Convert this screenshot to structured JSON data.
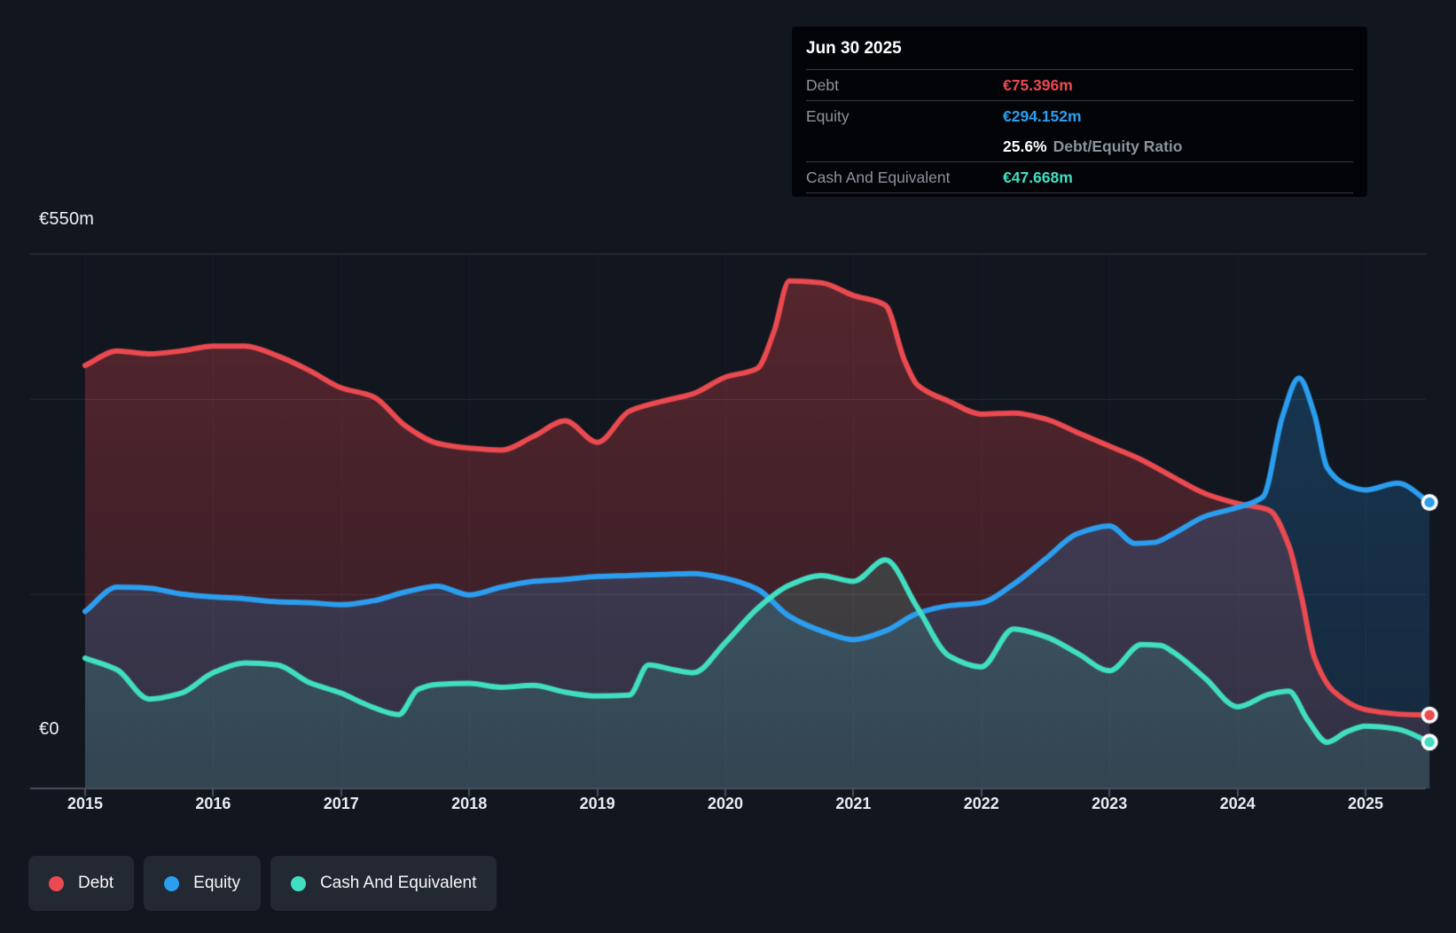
{
  "y_axis": {
    "top_label": "€550m",
    "zero_label": "€0"
  },
  "x_axis": {
    "ticks": [
      "2015",
      "2016",
      "2017",
      "2018",
      "2019",
      "2020",
      "2021",
      "2022",
      "2023",
      "2024",
      "2025"
    ]
  },
  "tooltip": {
    "date": "Jun 30 2025",
    "rows": [
      {
        "label": "Debt",
        "value": "€75.396m",
        "series": "debt"
      },
      {
        "label": "Equity",
        "value": "€294.152m",
        "series": "equity"
      }
    ],
    "ratio_value": "25.6%",
    "ratio_label": "Debt/Equity Ratio",
    "cash_row": {
      "label": "Cash And Equivalent",
      "value": "€47.668m",
      "series": "cash"
    }
  },
  "legend": [
    {
      "label": "Debt",
      "series": "debt"
    },
    {
      "label": "Equity",
      "series": "equity"
    },
    {
      "label": "Cash And Equivalent",
      "series": "cash"
    }
  ],
  "colors": {
    "debt": "#ea4a50",
    "equity": "#2b9ef0",
    "cash": "#41dfc2",
    "background": "#12161f",
    "tooltip_bg": "#020408",
    "legend_chip_bg": "#232932",
    "axis_line": "#49525b",
    "grid_major": "rgba(255,255,255,0.15)",
    "grid_minor": "rgba(255,255,255,0.08)"
  },
  "chart_data": {
    "type": "area",
    "unit": "€m",
    "currency": "EUR",
    "x_range": [
      2015,
      2025.5
    ],
    "y_range": [
      0,
      550
    ],
    "y_top_tick_label": "€550m",
    "y_zero_tick_label": "€0",
    "gridline_values": [
      550,
      400,
      200
    ],
    "x_tick_years": [
      2015,
      2016,
      2017,
      2018,
      2019,
      2020,
      2021,
      2022,
      2023,
      2024,
      2025
    ],
    "legend_position": "bottom-left",
    "end_date": "Jun 30 2025",
    "end_values": {
      "debt": 75.396,
      "equity": 294.152,
      "cash": 47.668,
      "debt_equity_ratio_pct": 25.6
    },
    "series": [
      {
        "name": "Debt",
        "key": "debt",
        "points": [
          [
            2015,
            435
          ],
          [
            2015.25,
            450
          ],
          [
            2015.5,
            447
          ],
          [
            2015.75,
            450
          ],
          [
            2016,
            455
          ],
          [
            2016.25,
            455
          ],
          [
            2016.5,
            445
          ],
          [
            2016.75,
            430
          ],
          [
            2017,
            412
          ],
          [
            2017.25,
            403
          ],
          [
            2017.5,
            373
          ],
          [
            2017.75,
            355
          ],
          [
            2018,
            350
          ],
          [
            2018.25,
            348
          ],
          [
            2018.5,
            362
          ],
          [
            2018.75,
            378
          ],
          [
            2019,
            356
          ],
          [
            2019.25,
            388
          ],
          [
            2019.5,
            398
          ],
          [
            2019.75,
            406
          ],
          [
            2020,
            423
          ],
          [
            2020.25,
            432
          ],
          [
            2020.38,
            470
          ],
          [
            2020.5,
            522
          ],
          [
            2020.75,
            520
          ],
          [
            2021,
            507
          ],
          [
            2021.25,
            497
          ],
          [
            2021.4,
            440
          ],
          [
            2021.5,
            415
          ],
          [
            2021.75,
            398
          ],
          [
            2022,
            385
          ],
          [
            2022.25,
            386
          ],
          [
            2022.5,
            380
          ],
          [
            2022.75,
            366
          ],
          [
            2023,
            352
          ],
          [
            2023.25,
            338
          ],
          [
            2023.5,
            320
          ],
          [
            2023.75,
            303
          ],
          [
            2024,
            293
          ],
          [
            2024.25,
            286
          ],
          [
            2024.4,
            250
          ],
          [
            2024.5,
            197
          ],
          [
            2024.6,
            135
          ],
          [
            2024.75,
            100
          ],
          [
            2025,
            81
          ],
          [
            2025.25,
            76.5
          ],
          [
            2025.5,
            75.396
          ]
        ]
      },
      {
        "name": "Equity",
        "key": "equity",
        "points": [
          [
            2015,
            182
          ],
          [
            2015.25,
            207
          ],
          [
            2015.5,
            206
          ],
          [
            2015.75,
            200
          ],
          [
            2016,
            197
          ],
          [
            2016.25,
            195
          ],
          [
            2016.5,
            192
          ],
          [
            2016.75,
            191
          ],
          [
            2017,
            189
          ],
          [
            2017.25,
            193
          ],
          [
            2017.5,
            202
          ],
          [
            2017.75,
            208
          ],
          [
            2018,
            199
          ],
          [
            2018.25,
            207
          ],
          [
            2018.5,
            213
          ],
          [
            2018.75,
            215
          ],
          [
            2019,
            218
          ],
          [
            2019.25,
            219
          ],
          [
            2019.5,
            220
          ],
          [
            2019.75,
            221
          ],
          [
            2020,
            216
          ],
          [
            2020.25,
            205
          ],
          [
            2020.5,
            177
          ],
          [
            2020.75,
            162
          ],
          [
            2021,
            153
          ],
          [
            2021.25,
            162
          ],
          [
            2021.5,
            180
          ],
          [
            2021.75,
            188
          ],
          [
            2022,
            191
          ],
          [
            2022.25,
            210
          ],
          [
            2022.5,
            236
          ],
          [
            2022.75,
            262
          ],
          [
            2023,
            270
          ],
          [
            2023.2,
            252
          ],
          [
            2023.35,
            253
          ],
          [
            2023.5,
            262
          ],
          [
            2023.75,
            280
          ],
          [
            2024,
            289
          ],
          [
            2024.2,
            300
          ],
          [
            2024.35,
            382
          ],
          [
            2024.48,
            422
          ],
          [
            2024.6,
            385
          ],
          [
            2024.7,
            330
          ],
          [
            2024.85,
            312
          ],
          [
            2025,
            307
          ],
          [
            2025.25,
            314
          ],
          [
            2025.5,
            294.152
          ]
        ]
      },
      {
        "name": "Cash And Equivalent",
        "key": "cash",
        "points": [
          [
            2015,
            134
          ],
          [
            2015.25,
            122
          ],
          [
            2015.5,
            92
          ],
          [
            2015.75,
            98
          ],
          [
            2016,
            119
          ],
          [
            2016.25,
            129
          ],
          [
            2016.5,
            127
          ],
          [
            2016.75,
            109
          ],
          [
            2017,
            98
          ],
          [
            2017.2,
            86
          ],
          [
            2017.45,
            76
          ],
          [
            2017.6,
            102
          ],
          [
            2017.75,
            107
          ],
          [
            2018,
            108
          ],
          [
            2018.25,
            104
          ],
          [
            2018.5,
            106
          ],
          [
            2018.75,
            99
          ],
          [
            2019,
            95
          ],
          [
            2019.25,
            96
          ],
          [
            2019.4,
            127
          ],
          [
            2019.6,
            122
          ],
          [
            2019.75,
            119
          ],
          [
            2020,
            150
          ],
          [
            2020.25,
            185
          ],
          [
            2020.5,
            209
          ],
          [
            2020.75,
            219
          ],
          [
            2021,
            213
          ],
          [
            2021.25,
            235
          ],
          [
            2021.5,
            186
          ],
          [
            2021.75,
            136
          ],
          [
            2022,
            125
          ],
          [
            2022.25,
            164
          ],
          [
            2022.5,
            156
          ],
          [
            2022.75,
            139
          ],
          [
            2023,
            121
          ],
          [
            2023.25,
            148
          ],
          [
            2023.4,
            147
          ],
          [
            2023.5,
            140
          ],
          [
            2023.75,
            113
          ],
          [
            2024,
            84
          ],
          [
            2024.25,
            97
          ],
          [
            2024.4,
            100
          ],
          [
            2024.55,
            70
          ],
          [
            2024.7,
            47.5
          ],
          [
            2024.85,
            58
          ],
          [
            2025,
            64
          ],
          [
            2025.25,
            61
          ],
          [
            2025.5,
            47.668
          ]
        ]
      }
    ]
  }
}
